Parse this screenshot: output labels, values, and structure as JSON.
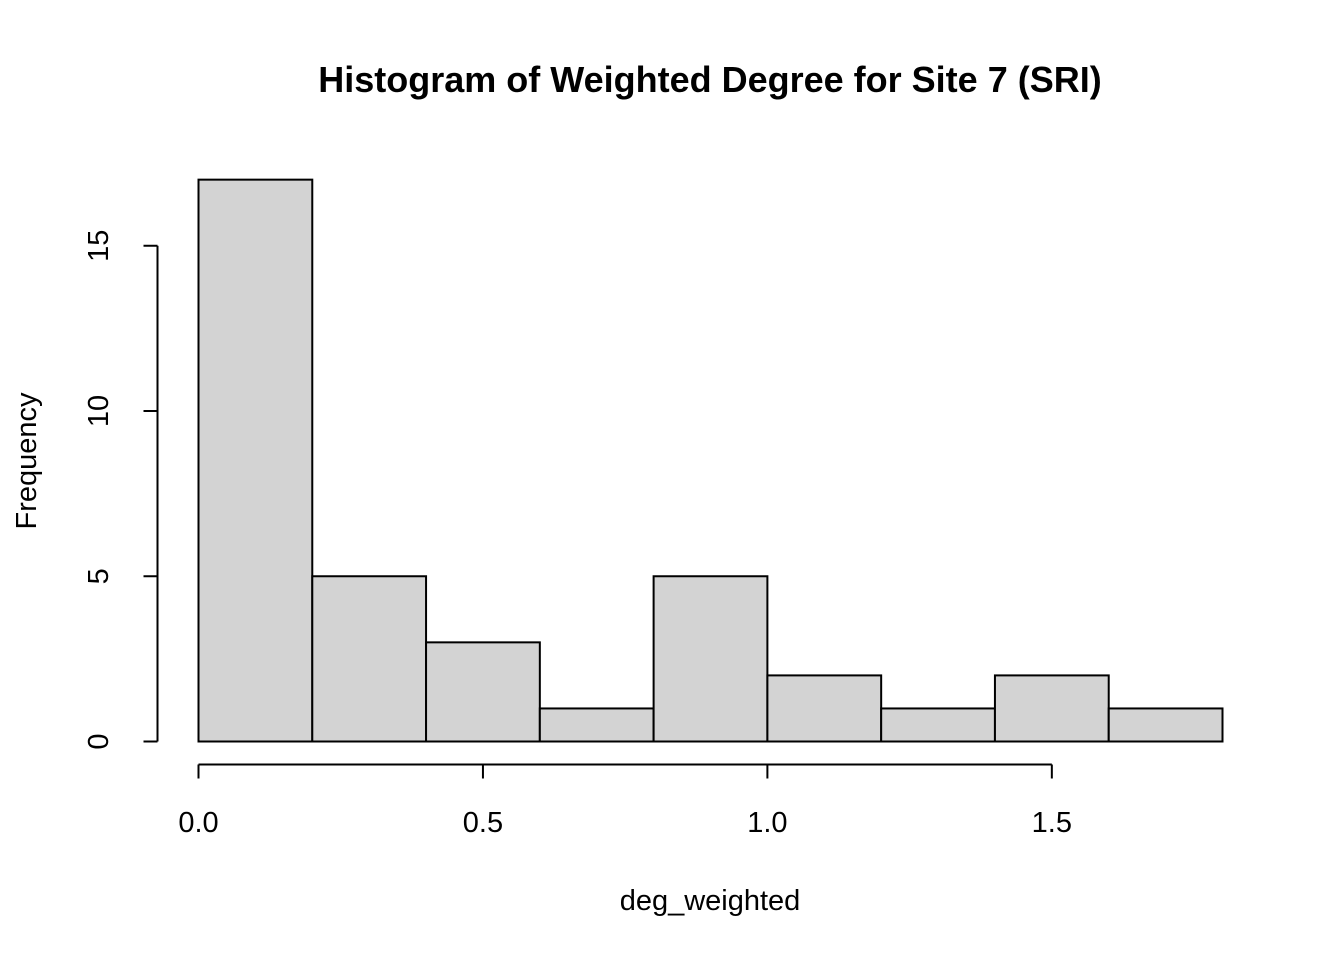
{
  "chart_data": {
    "type": "bar",
    "title": "Histogram of Weighted Degree for Site 7 (SRI)",
    "xlabel": "deg_weighted",
    "ylabel": "Frequency",
    "bins": [
      {
        "x0": 0.0,
        "x1": 0.2,
        "count": 17
      },
      {
        "x0": 0.2,
        "x1": 0.4,
        "count": 5
      },
      {
        "x0": 0.4,
        "x1": 0.6,
        "count": 3
      },
      {
        "x0": 0.6,
        "x1": 0.8,
        "count": 1
      },
      {
        "x0": 0.8,
        "x1": 1.0,
        "count": 5
      },
      {
        "x0": 1.0,
        "x1": 1.2,
        "count": 2
      },
      {
        "x0": 1.2,
        "x1": 1.4,
        "count": 1
      },
      {
        "x0": 1.4,
        "x1": 1.6,
        "count": 2
      },
      {
        "x0": 1.6,
        "x1": 1.8,
        "count": 1
      }
    ],
    "x_ticks": [
      {
        "value": 0.0,
        "label": "0.0"
      },
      {
        "value": 0.5,
        "label": "0.5"
      },
      {
        "value": 1.0,
        "label": "1.0"
      },
      {
        "value": 1.5,
        "label": "1.5"
      }
    ],
    "y_ticks": [
      {
        "value": 0,
        "label": "0"
      },
      {
        "value": 5,
        "label": "5"
      },
      {
        "value": 10,
        "label": "10"
      },
      {
        "value": 15,
        "label": "15"
      }
    ],
    "xlim": [
      0.0,
      1.8
    ],
    "ylim": [
      0,
      17
    ],
    "grid": false,
    "legend": "none",
    "bar_fill": "#d3d3d3",
    "bar_stroke": "#000000"
  }
}
